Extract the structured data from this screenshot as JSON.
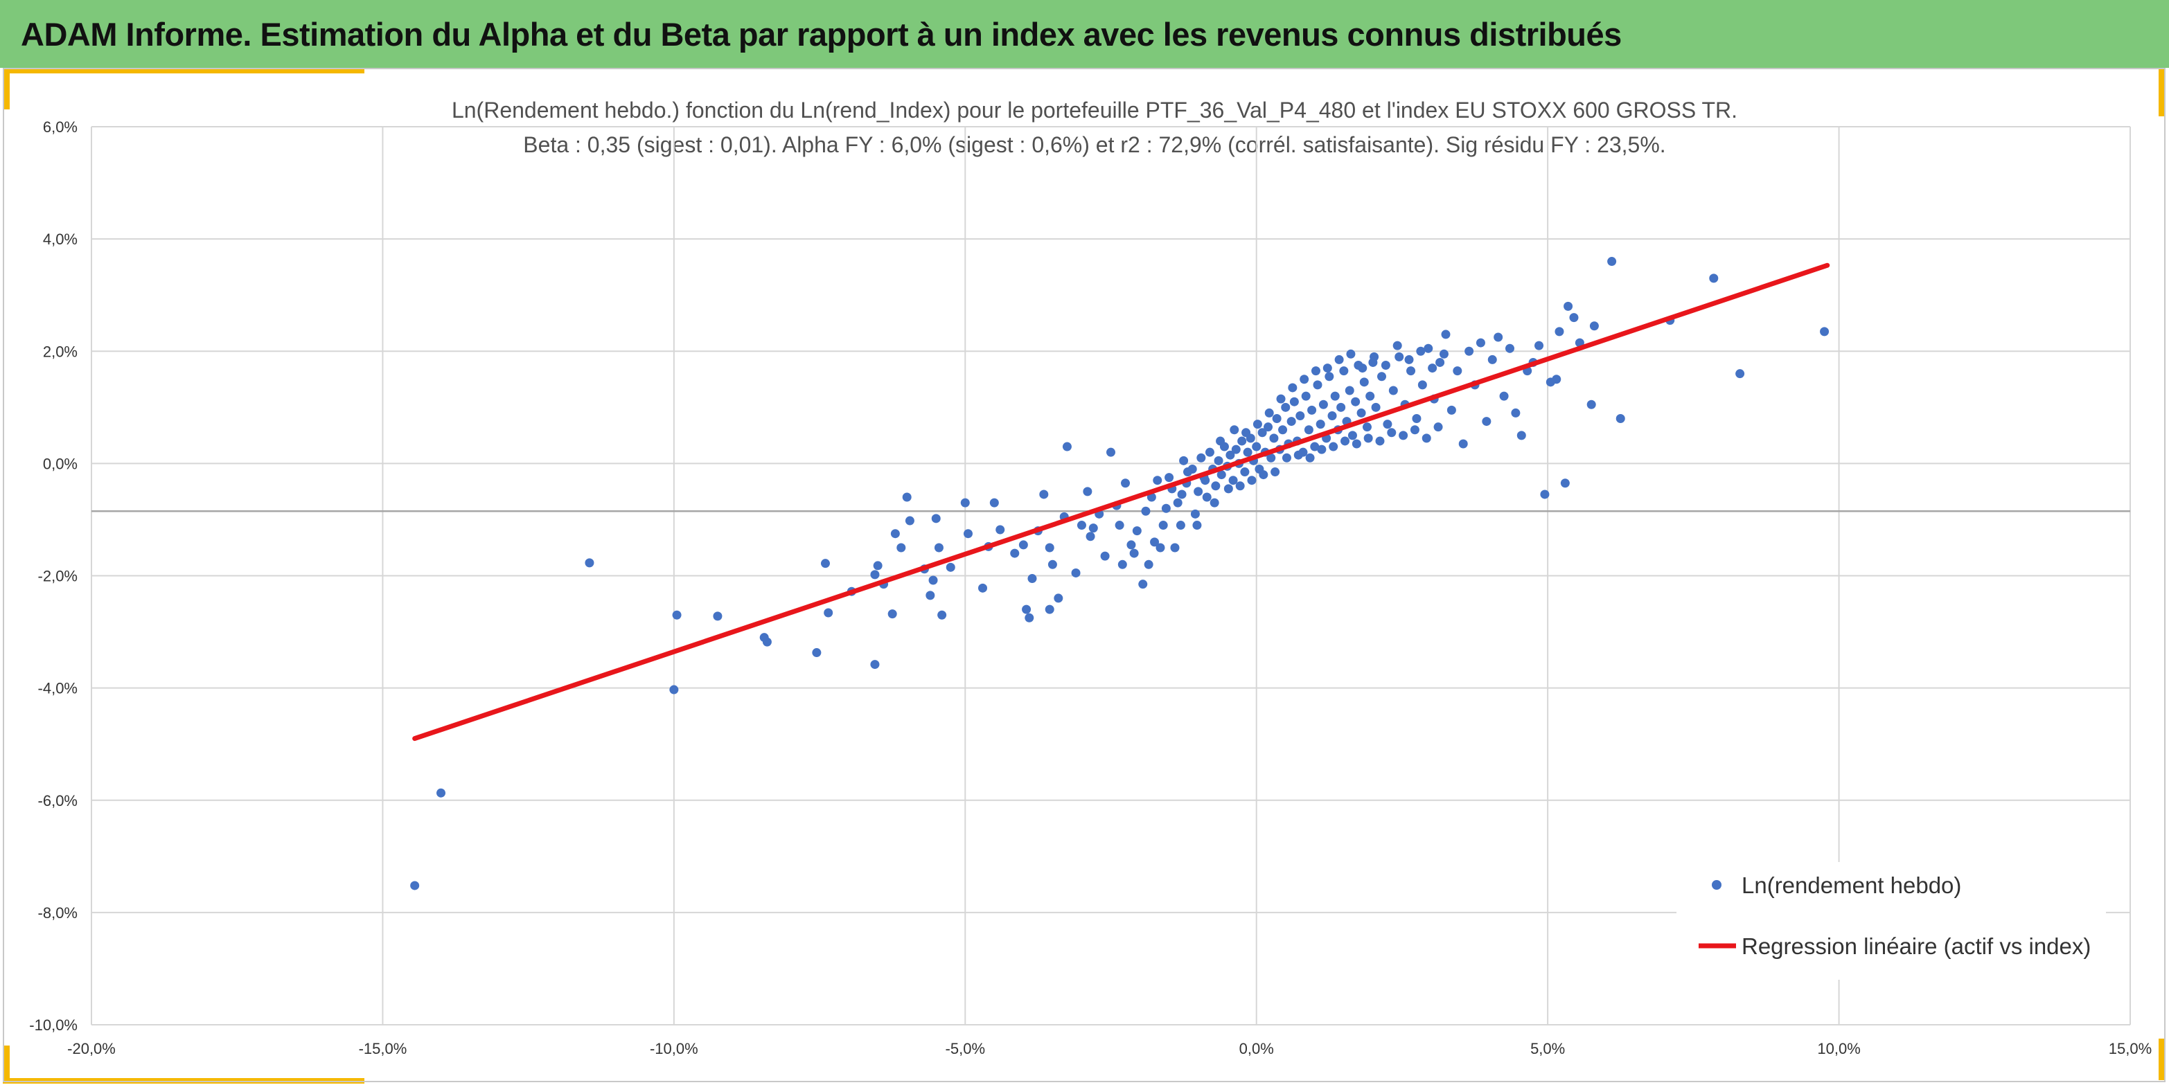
{
  "header": {
    "title": "ADAM Informe. Estimation du Alpha et du Beta par rapport à un index avec les revenus connus distribués"
  },
  "colors": {
    "header_bg": "#7ec87a",
    "accent": "#f5b800",
    "point": "#4472c4",
    "regression": "#e8161b"
  },
  "chart_data": {
    "type": "scatter",
    "title_line1": "Ln(Rendement hebdo.) fonction du Ln(rend_Index) pour le portefeuille PTF_36_Val_P4_480 et l'index EU STOXX 600 GROSS TR.",
    "title_line2": "Beta : 0,35 (sigest : 0,01).  Alpha FY : 6,0% (sigest : 0,6%) et r2 : 72,9% (corrél. satisfaisante). Sig résidu FY : 23,5%.",
    "xlim": [
      -0.2,
      0.15
    ],
    "ylim": [
      -0.1,
      0.06
    ],
    "x_ticks": [
      -0.2,
      -0.15,
      -0.1,
      -0.05,
      0.0,
      0.05,
      0.1,
      0.15
    ],
    "x_tick_labels": [
      "-20,0%",
      "-15,0%",
      "-10,0%",
      "-5,0%",
      "0,0%",
      "5,0%",
      "10,0%",
      "15,0%"
    ],
    "y_ticks": [
      0.06,
      0.04,
      0.02,
      0.0,
      -0.02,
      -0.04,
      -0.06,
      -0.08,
      -0.1
    ],
    "y_tick_labels": [
      "6,0%",
      "4,0%",
      "2,0%",
      "0,0%",
      "-2,0%",
      "-4,0%",
      "-6,0%",
      "-8,0%",
      "-10,0%"
    ],
    "horizontal_axis_at_y": -0.0085,
    "grid": true,
    "legend_position": "bottom-right",
    "series": [
      {
        "name": "Ln(rendement hebdo)",
        "kind": "scatter",
        "points": [
          [
            -0.1445,
            -0.0752
          ],
          [
            -0.14,
            -0.0587
          ],
          [
            -0.1145,
            -0.0177
          ],
          [
            -0.1,
            -0.0403
          ],
          [
            -0.0995,
            -0.027
          ],
          [
            -0.0925,
            -0.0272
          ],
          [
            -0.0845,
            -0.031
          ],
          [
            -0.084,
            -0.0318
          ],
          [
            -0.0755,
            -0.0337
          ],
          [
            -0.074,
            -0.0178
          ],
          [
            -0.0735,
            -0.0266
          ],
          [
            -0.0695,
            -0.0228
          ],
          [
            -0.0655,
            -0.0358
          ],
          [
            -0.0655,
            -0.0198
          ],
          [
            -0.065,
            -0.0182
          ],
          [
            -0.064,
            -0.0215
          ],
          [
            -0.0625,
            -0.0268
          ],
          [
            -0.062,
            -0.0125
          ],
          [
            -0.061,
            -0.015
          ],
          [
            -0.06,
            -0.006
          ],
          [
            -0.0595,
            -0.0102
          ],
          [
            -0.057,
            -0.0188
          ],
          [
            -0.056,
            -0.0235
          ],
          [
            -0.0555,
            -0.0208
          ],
          [
            -0.055,
            -0.0098
          ],
          [
            -0.0545,
            -0.015
          ],
          [
            -0.054,
            -0.027
          ],
          [
            -0.0525,
            -0.0185
          ],
          [
            -0.05,
            -0.007
          ],
          [
            -0.0495,
            -0.0125
          ],
          [
            -0.047,
            -0.0222
          ],
          [
            -0.046,
            -0.0148
          ],
          [
            -0.045,
            -0.007
          ],
          [
            -0.044,
            -0.0118
          ],
          [
            -0.0415,
            -0.016
          ],
          [
            -0.04,
            -0.0145
          ],
          [
            -0.0395,
            -0.026
          ],
          [
            -0.039,
            -0.0275
          ],
          [
            -0.0385,
            -0.0205
          ],
          [
            -0.0375,
            -0.012
          ],
          [
            -0.0365,
            -0.0055
          ],
          [
            -0.0355,
            -0.015
          ],
          [
            -0.035,
            -0.018
          ],
          [
            -0.034,
            -0.024
          ],
          [
            -0.033,
            -0.0095
          ],
          [
            -0.0325,
            0.003
          ],
          [
            -0.031,
            -0.0195
          ],
          [
            -0.03,
            -0.011
          ],
          [
            -0.029,
            -0.005
          ],
          [
            -0.0285,
            -0.013
          ],
          [
            -0.027,
            -0.009
          ],
          [
            -0.026,
            -0.0165
          ],
          [
            -0.025,
            0.002
          ],
          [
            -0.024,
            -0.0075
          ],
          [
            -0.0235,
            -0.011
          ],
          [
            -0.0225,
            -0.0035
          ],
          [
            -0.0215,
            -0.0145
          ],
          [
            -0.0205,
            -0.012
          ],
          [
            -0.0195,
            -0.0215
          ],
          [
            -0.019,
            -0.0085
          ],
          [
            -0.018,
            -0.006
          ],
          [
            -0.017,
            -0.003
          ],
          [
            -0.0165,
            -0.015
          ],
          [
            -0.016,
            -0.011
          ],
          [
            -0.015,
            -0.0025
          ],
          [
            -0.0145,
            -0.0045
          ],
          [
            -0.0135,
            -0.007
          ],
          [
            -0.013,
            -0.011
          ],
          [
            -0.0125,
            0.0005
          ],
          [
            -0.012,
            -0.0035
          ],
          [
            -0.011,
            -0.001
          ],
          [
            -0.0105,
            -0.009
          ],
          [
            -0.01,
            -0.005
          ],
          [
            -0.0095,
            0.001
          ],
          [
            -0.009,
            -0.0025
          ],
          [
            -0.0085,
            -0.006
          ],
          [
            -0.008,
            0.002
          ],
          [
            -0.0075,
            -0.001
          ],
          [
            -0.007,
            -0.004
          ],
          [
            -0.0065,
            0.0005
          ],
          [
            -0.006,
            -0.002
          ],
          [
            -0.0055,
            0.003
          ],
          [
            -0.005,
            -0.0005
          ],
          [
            -0.0045,
            0.0015
          ],
          [
            -0.004,
            -0.003
          ],
          [
            -0.0035,
            0.0025
          ],
          [
            -0.003,
            0.0
          ],
          [
            -0.0025,
            0.004
          ],
          [
            -0.002,
            -0.0015
          ],
          [
            -0.0015,
            0.002
          ],
          [
            -0.001,
            0.0045
          ],
          [
            -0.0005,
            0.0005
          ],
          [
            0.0,
            0.003
          ],
          [
            0.0005,
            -0.001
          ],
          [
            0.001,
            0.0055
          ],
          [
            0.0015,
            0.002
          ],
          [
            0.002,
            0.0065
          ],
          [
            0.0025,
            0.001
          ],
          [
            0.003,
            0.0045
          ],
          [
            0.0035,
            0.008
          ],
          [
            0.004,
            0.0025
          ],
          [
            0.0045,
            0.006
          ],
          [
            0.005,
            0.01
          ],
          [
            0.0055,
            0.0035
          ],
          [
            0.006,
            0.0075
          ],
          [
            0.0065,
            0.011
          ],
          [
            0.007,
            0.004
          ],
          [
            0.0075,
            0.0085
          ],
          [
            0.008,
            0.002
          ],
          [
            0.0085,
            0.012
          ],
          [
            0.009,
            0.006
          ],
          [
            0.0095,
            0.0095
          ],
          [
            0.01,
            0.003
          ],
          [
            0.0105,
            0.014
          ],
          [
            0.011,
            0.007
          ],
          [
            0.0115,
            0.0105
          ],
          [
            0.012,
            0.0045
          ],
          [
            0.0125,
            0.0155
          ],
          [
            0.013,
            0.0085
          ],
          [
            0.0135,
            0.012
          ],
          [
            0.014,
            0.006
          ],
          [
            0.0145,
            0.01
          ],
          [
            0.015,
            0.0165
          ],
          [
            0.0155,
            0.0075
          ],
          [
            0.016,
            0.013
          ],
          [
            0.0165,
            0.005
          ],
          [
            0.017,
            0.011
          ],
          [
            0.0175,
            0.0175
          ],
          [
            0.018,
            0.009
          ],
          [
            0.0185,
            0.0145
          ],
          [
            0.019,
            0.0065
          ],
          [
            0.0195,
            0.012
          ],
          [
            0.02,
            0.018
          ],
          [
            0.0205,
            0.01
          ],
          [
            0.0215,
            0.0155
          ],
          [
            0.0225,
            0.007
          ],
          [
            0.0235,
            0.013
          ],
          [
            0.0245,
            0.019
          ],
          [
            0.0255,
            0.0105
          ],
          [
            0.0265,
            0.0165
          ],
          [
            0.0275,
            0.008
          ],
          [
            0.0285,
            0.014
          ],
          [
            0.0295,
            0.0205
          ],
          [
            0.0305,
            0.0115
          ],
          [
            0.0315,
            0.018
          ],
          [
            0.0325,
            0.023
          ],
          [
            0.0335,
            0.0095
          ],
          [
            0.0345,
            0.0165
          ],
          [
            0.0355,
            0.0035
          ],
          [
            0.0365,
            0.02
          ],
          [
            0.0375,
            0.014
          ],
          [
            0.0385,
            0.0215
          ],
          [
            0.0395,
            0.0075
          ],
          [
            0.0405,
            0.0185
          ],
          [
            0.0415,
            0.0225
          ],
          [
            0.0425,
            0.012
          ],
          [
            0.0435,
            0.0205
          ],
          [
            0.0445,
            0.009
          ],
          [
            0.0455,
            0.005
          ],
          [
            0.0465,
            0.0165
          ],
          [
            0.0475,
            0.018
          ],
          [
            0.0485,
            0.021
          ],
          [
            0.0495,
            -0.0055
          ],
          [
            0.0505,
            0.0145
          ],
          [
            0.0515,
            0.015
          ],
          [
            0.052,
            0.0235
          ],
          [
            0.053,
            -0.0035
          ],
          [
            0.0535,
            0.028
          ],
          [
            0.0545,
            0.026
          ],
          [
            0.0555,
            0.0215
          ],
          [
            0.0575,
            0.0105
          ],
          [
            0.058,
            0.0245
          ],
          [
            0.061,
            0.036
          ],
          [
            0.0625,
            0.008
          ],
          [
            0.071,
            0.0255
          ],
          [
            0.0785,
            0.033
          ],
          [
            0.083,
            0.016
          ],
          [
            0.0975,
            0.0235
          ],
          [
            -0.0355,
            -0.026
          ],
          [
            -0.028,
            -0.0115
          ],
          [
            -0.023,
            -0.018
          ],
          [
            -0.021,
            -0.016
          ],
          [
            -0.0185,
            -0.018
          ],
          [
            -0.0175,
            -0.014
          ],
          [
            -0.0155,
            -0.008
          ],
          [
            -0.014,
            -0.015
          ],
          [
            -0.0128,
            -0.0055
          ],
          [
            -0.0118,
            -0.0015
          ],
          [
            -0.0102,
            -0.011
          ],
          [
            -0.0088,
            -0.003
          ],
          [
            -0.0072,
            -0.007
          ],
          [
            -0.0062,
            0.004
          ],
          [
            -0.0048,
            -0.0045
          ],
          [
            -0.0038,
            0.006
          ],
          [
            -0.0028,
            -0.004
          ],
          [
            -0.0018,
            0.0055
          ],
          [
            -0.0008,
            -0.003
          ],
          [
            0.0002,
            0.007
          ],
          [
            0.0012,
            -0.002
          ],
          [
            0.0022,
            0.009
          ],
          [
            0.0032,
            -0.0015
          ],
          [
            0.0042,
            0.0115
          ],
          [
            0.0052,
            0.001
          ],
          [
            0.0062,
            0.0135
          ],
          [
            0.0072,
            0.0015
          ],
          [
            0.0082,
            0.015
          ],
          [
            0.0092,
            0.001
          ],
          [
            0.0102,
            0.0165
          ],
          [
            0.0112,
            0.0025
          ],
          [
            0.0122,
            0.017
          ],
          [
            0.0132,
            0.003
          ],
          [
            0.0142,
            0.0185
          ],
          [
            0.0152,
            0.004
          ],
          [
            0.0162,
            0.0195
          ],
          [
            0.0172,
            0.0035
          ],
          [
            0.0182,
            0.017
          ],
          [
            0.0192,
            0.0045
          ],
          [
            0.0202,
            0.019
          ],
          [
            0.0212,
            0.004
          ],
          [
            0.0222,
            0.0175
          ],
          [
            0.0232,
            0.0055
          ],
          [
            0.0242,
            0.021
          ],
          [
            0.0252,
            0.005
          ],
          [
            0.0262,
            0.0185
          ],
          [
            0.0272,
            0.006
          ],
          [
            0.0282,
            0.02
          ],
          [
            0.0292,
            0.0045
          ],
          [
            0.0302,
            0.017
          ],
          [
            0.0312,
            0.0065
          ],
          [
            0.0322,
            0.0195
          ]
        ]
      },
      {
        "name": "Regression linéaire (actif vs index)",
        "kind": "line",
        "points": [
          [
            -0.1445,
            -0.049
          ],
          [
            0.098,
            0.0353
          ]
        ]
      }
    ]
  }
}
